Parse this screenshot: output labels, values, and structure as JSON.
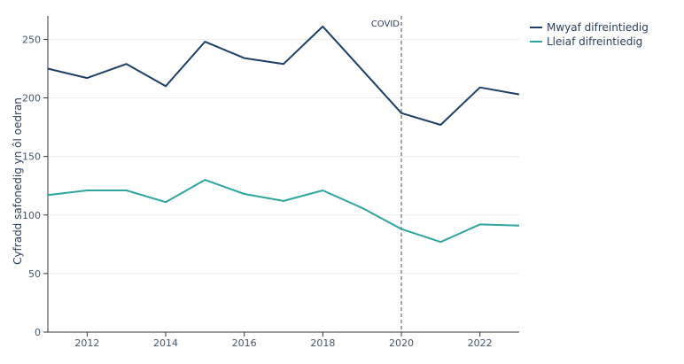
{
  "chart_data": {
    "type": "line",
    "xlabel": "",
    "ylabel": "Cyfradd safonedig yn ôl oedran",
    "xlim": [
      2011,
      2023
    ],
    "ylim": [
      0,
      270
    ],
    "x_ticks": [
      2012,
      2014,
      2016,
      2018,
      2020,
      2022
    ],
    "y_ticks": [
      0,
      50,
      100,
      150,
      200,
      250
    ],
    "grid": true,
    "legend_position": "top-right",
    "x": [
      2011,
      2012,
      2013,
      2014,
      2015,
      2016,
      2017,
      2018,
      2019,
      2020,
      2021,
      2022,
      2023
    ],
    "series": [
      {
        "name": "Mwyaf difreintiedig",
        "color": "#1b3f66",
        "values": [
          225,
          217,
          229,
          210,
          248,
          234,
          229,
          261,
          224,
          187,
          177,
          209,
          203
        ]
      },
      {
        "name": "Lleiaf difreintiedig",
        "color": "#2ea59e",
        "values": [
          117,
          121,
          121,
          111,
          130,
          118,
          112,
          121,
          106,
          88,
          77,
          92,
          91
        ]
      }
    ],
    "annotations": [
      {
        "x": 2020,
        "label": "COVID",
        "style": "dashed-vertical-line",
        "color": "#777777"
      }
    ]
  }
}
